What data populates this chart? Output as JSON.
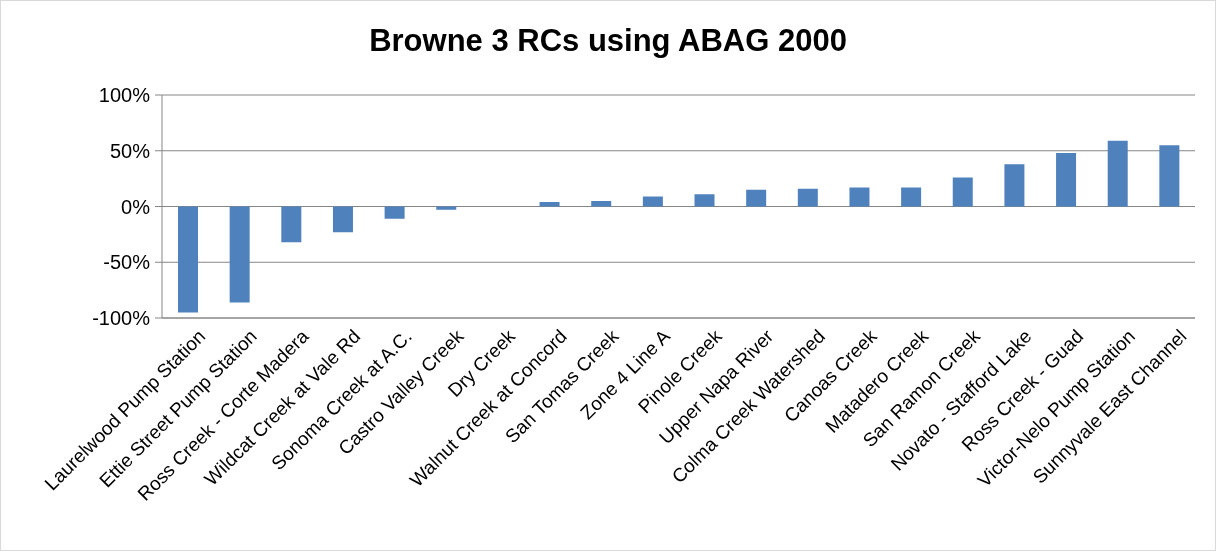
{
  "chart_data": {
    "type": "bar",
    "title": "Browne 3 RCs using ABAG 2000",
    "categories": [
      "Laurelwood Pump Station",
      "Ettie Street Pump Station",
      "Ross Creek - Corte Madera",
      "Wildcat Creek at Vale Rd",
      "Sonoma Creek at A.C.",
      "Castro Valley Creek",
      "Dry Creek",
      "Walnut Creek at Concord",
      "San Tomas Creek",
      "Zone 4 Line A",
      "Pinole Creek",
      "Upper Napa River",
      "Colma Creek Watershed",
      "Canoas Creek",
      "Matadero Creek",
      "San Ramon Creek",
      "Novato - Stafford Lake",
      "Ross Creek - Guad",
      "Victor-Nelo Pump Station",
      "Sunnyvale East Channel"
    ],
    "values": [
      -95,
      -86,
      -32,
      -23,
      -11,
      -3,
      0,
      4,
      5,
      9,
      11,
      15,
      16,
      17,
      17,
      26,
      38,
      48,
      59,
      55
    ],
    "color": "#4f81bd",
    "ylim": [
      -100,
      100
    ],
    "yticks": [
      {
        "value": -100,
        "label": "-100%"
      },
      {
        "value": -50,
        "label": "-50%"
      },
      {
        "value": 0,
        "label": "0%"
      },
      {
        "value": 50,
        "label": "50%"
      },
      {
        "value": 100,
        "label": "100%"
      }
    ],
    "grid": "y"
  }
}
